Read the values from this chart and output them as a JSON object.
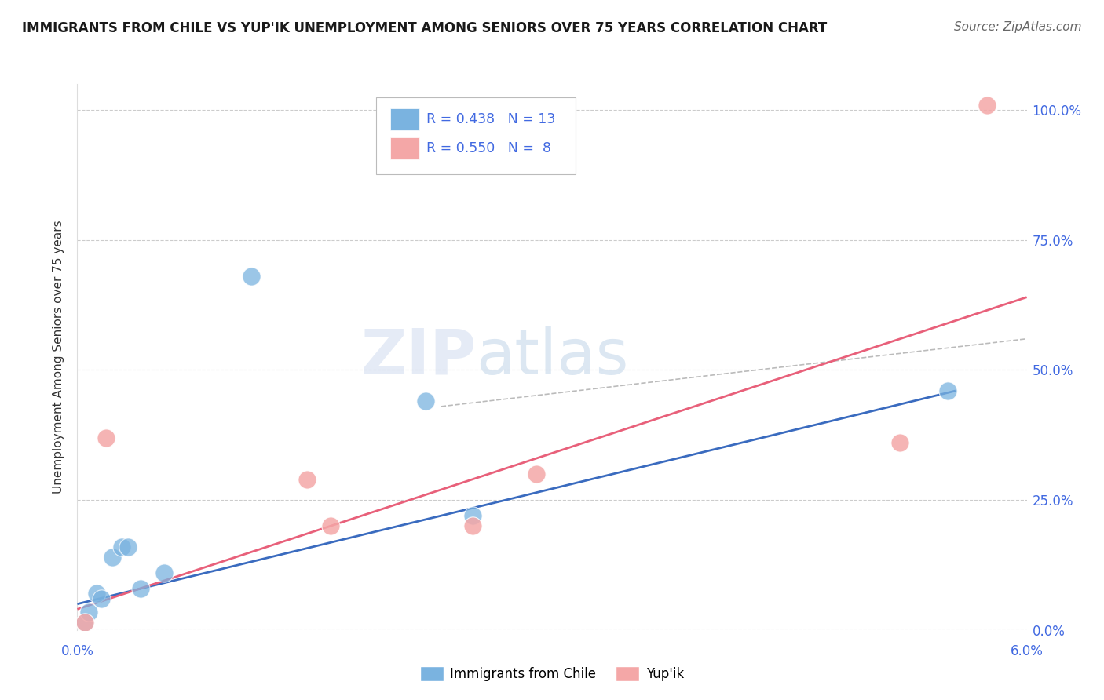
{
  "title": "IMMIGRANTS FROM CHILE VS YUP'IK UNEMPLOYMENT AMONG SENIORS OVER 75 YEARS CORRELATION CHART",
  "source": "Source: ZipAtlas.com",
  "ylabel": "Unemployment Among Seniors over 75 years",
  "ytick_labels": [
    "0.0%",
    "25.0%",
    "50.0%",
    "75.0%",
    "100.0%"
  ],
  "ytick_values": [
    0,
    25,
    50,
    75,
    100
  ],
  "xlim": [
    0,
    6
  ],
  "ylim": [
    0,
    105
  ],
  "blue_points": [
    [
      0.05,
      1.5
    ],
    [
      0.07,
      3.5
    ],
    [
      0.12,
      7
    ],
    [
      0.15,
      6
    ],
    [
      0.22,
      14
    ],
    [
      0.28,
      16
    ],
    [
      0.32,
      16
    ],
    [
      0.4,
      8
    ],
    [
      0.55,
      11
    ],
    [
      1.1,
      68
    ],
    [
      2.2,
      44
    ],
    [
      2.5,
      22
    ],
    [
      5.5,
      46
    ]
  ],
  "pink_points": [
    [
      0.05,
      1.5
    ],
    [
      0.18,
      37
    ],
    [
      1.45,
      29
    ],
    [
      1.6,
      20
    ],
    [
      2.5,
      20
    ],
    [
      2.9,
      30
    ],
    [
      5.2,
      36
    ],
    [
      5.75,
      101
    ]
  ],
  "blue_line_x": [
    0,
    5.55
  ],
  "blue_line_y": [
    5,
    46
  ],
  "pink_line_x": [
    0,
    6
  ],
  "pink_line_y": [
    4,
    64
  ],
  "dashed_line_x": [
    2.3,
    6
  ],
  "dashed_line_y": [
    43,
    56
  ],
  "blue_color": "#7ab3e0",
  "pink_color": "#f4a7a7",
  "blue_line_color": "#3a6bbf",
  "pink_line_color": "#e8607a",
  "dashed_line_color": "#aaaaaa",
  "legend_R_blue": "0.438",
  "legend_N_blue": "13",
  "legend_R_pink": "0.550",
  "legend_N_pink": "8",
  "legend_text_color": "#4169e1",
  "watermark_color": "#ccd8ee",
  "background_color": "#ffffff",
  "grid_color": "#cccccc",
  "title_color": "#1a1a1a",
  "source_color": "#666666",
  "ylabel_color": "#333333",
  "axis_label_color": "#4169e1"
}
